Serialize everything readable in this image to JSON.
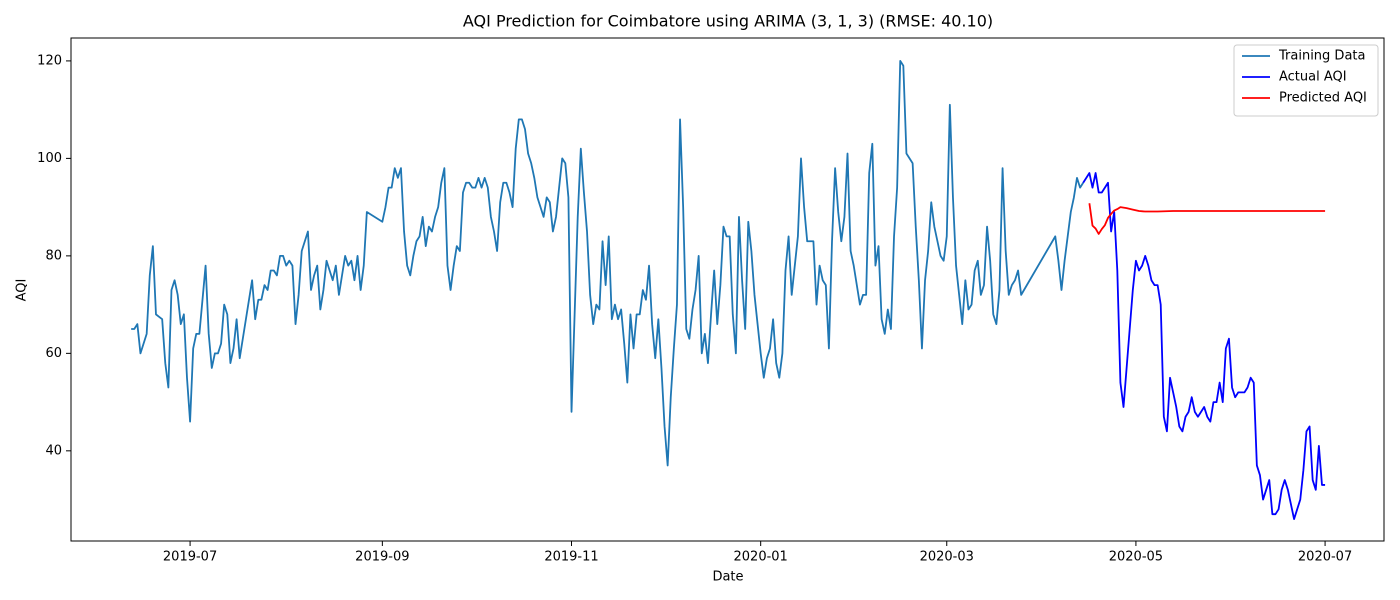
{
  "chart_data": {
    "type": "line",
    "title": "AQI Prediction for Coimbatore using ARIMA (3, 1, 3) (RMSE: 40.10)",
    "x_label": "Date",
    "y_label": "AQI",
    "xlim": [
      18039.6,
      18463
    ],
    "ylim": [
      21.5,
      124.7
    ],
    "xticks": [
      {
        "value": 18078,
        "label": "2019-07"
      },
      {
        "value": 18140,
        "label": "2019-09"
      },
      {
        "value": 18201,
        "label": "2019-11"
      },
      {
        "value": 18262,
        "label": "2020-01"
      },
      {
        "value": 18322,
        "label": "2020-03"
      },
      {
        "value": 18383,
        "label": "2020-05"
      },
      {
        "value": 18444,
        "label": "2020-07"
      }
    ],
    "yticks": [
      40,
      60,
      80,
      100,
      120
    ],
    "grid": false,
    "legend": "upper right",
    "series": [
      {
        "name": "Training Data",
        "color": "#1f77b4",
        "x": [
          18059,
          18060,
          18061,
          18062,
          18063,
          18064,
          18065,
          18066,
          18067,
          18068,
          18069,
          18070,
          18071,
          18072,
          18073,
          18074,
          18075,
          18076,
          18077,
          18078,
          18079,
          18080,
          18081,
          18082,
          18083,
          18084,
          18085,
          18086,
          18087,
          18088,
          18089,
          18090,
          18091,
          18092,
          18093,
          18094,
          18095,
          18096,
          18097,
          18098,
          18099,
          18100,
          18101,
          18102,
          18103,
          18104,
          18105,
          18106,
          18107,
          18108,
          18109,
          18110,
          18111,
          18112,
          18113,
          18114,
          18115,
          18116,
          18117,
          18118,
          18119,
          18120,
          18121,
          18122,
          18123,
          18124,
          18125,
          18126,
          18127,
          18128,
          18129,
          18130,
          18131,
          18132,
          18133,
          18134,
          18135,
          18140,
          18141,
          18142,
          18143,
          18144,
          18145,
          18146,
          18147,
          18148,
          18149,
          18150,
          18151,
          18152,
          18153,
          18154,
          18155,
          18156,
          18157,
          18158,
          18159,
          18160,
          18161,
          18162,
          18163,
          18164,
          18165,
          18166,
          18167,
          18168,
          18169,
          18170,
          18171,
          18172,
          18173,
          18174,
          18175,
          18176,
          18177,
          18178,
          18179,
          18180,
          18181,
          18182,
          18183,
          18184,
          18185,
          18186,
          18187,
          18188,
          18189,
          18190,
          18191,
          18192,
          18193,
          18194,
          18195,
          18196,
          18197,
          18198,
          18199,
          18200,
          18201,
          18202,
          18203,
          18204,
          18205,
          18206,
          18207,
          18208,
          18209,
          18210,
          18211,
          18212,
          18213,
          18214,
          18215,
          18216,
          18217,
          18218,
          18219,
          18220,
          18221,
          18222,
          18223,
          18224,
          18225,
          18226,
          18227,
          18228,
          18229,
          18230,
          18231,
          18232,
          18233,
          18234,
          18235,
          18236,
          18237,
          18238,
          18239,
          18240,
          18241,
          18242,
          18243,
          18244,
          18245,
          18246,
          18247,
          18248,
          18249,
          18250,
          18251,
          18252,
          18253,
          18254,
          18255,
          18256,
          18257,
          18258,
          18259,
          18260,
          18261,
          18262,
          18263,
          18264,
          18265,
          18266,
          18267,
          18268,
          18269,
          18270,
          18271,
          18272,
          18273,
          18274,
          18275,
          18276,
          18277,
          18278,
          18279,
          18280,
          18281,
          18282,
          18283,
          18284,
          18285,
          18286,
          18287,
          18288,
          18289,
          18290,
          18291,
          18292,
          18293,
          18294,
          18295,
          18296,
          18297,
          18298,
          18299,
          18300,
          18301,
          18302,
          18303,
          18304,
          18305,
          18306,
          18307,
          18308,
          18309,
          18310,
          18311,
          18312,
          18313,
          18314,
          18315,
          18316,
          18317,
          18318,
          18319,
          18320,
          18321,
          18322,
          18323,
          18324,
          18325,
          18326,
          18327,
          18328,
          18329,
          18330,
          18331,
          18332,
          18333,
          18334,
          18335,
          18336,
          18337,
          18338,
          18339,
          18340,
          18341,
          18342,
          18343,
          18344,
          18345,
          18346,
          18357,
          18358,
          18359,
          18360,
          18361,
          18362,
          18363,
          18364,
          18365,
          18366
        ],
        "values": [
          65,
          65,
          66,
          60,
          62,
          64,
          76,
          82,
          68,
          67.5,
          67,
          58,
          53,
          73,
          75,
          72,
          66,
          68,
          55,
          46,
          61,
          64,
          64,
          71,
          78,
          64,
          57,
          60,
          60,
          62,
          70,
          68,
          58,
          61,
          67,
          59,
          63,
          67,
          71,
          75,
          67,
          71,
          71,
          74,
          73,
          77,
          77,
          76,
          80,
          80,
          78,
          79,
          78,
          66,
          72,
          81,
          83,
          85,
          73,
          76,
          78,
          69,
          73,
          79,
          77,
          75,
          78,
          72,
          76,
          80,
          78,
          79,
          75,
          80,
          73,
          78,
          89,
          87,
          90,
          94,
          94,
          98,
          96,
          98,
          85,
          78,
          76,
          80,
          83,
          84,
          88,
          82,
          86,
          85,
          88,
          90,
          95,
          98,
          78,
          73,
          78,
          82,
          81,
          93,
          95,
          95,
          94,
          94,
          96,
          94,
          96,
          94,
          88,
          85,
          81,
          91,
          95,
          95,
          93,
          90,
          102,
          108,
          108,
          106,
          101,
          99,
          96,
          92,
          90,
          88,
          92,
          91,
          85,
          88,
          94,
          100,
          99,
          92,
          48,
          68,
          88,
          102,
          93,
          85,
          72,
          66,
          70,
          69,
          83,
          74,
          84,
          67,
          70,
          67,
          69,
          62,
          54,
          68,
          61,
          68,
          68,
          73,
          71,
          78,
          66,
          59,
          67,
          57,
          45,
          37,
          51,
          61,
          70,
          108,
          90,
          65,
          63,
          69,
          73,
          80,
          60,
          64,
          58,
          68,
          77,
          66,
          74,
          86,
          84,
          84,
          68,
          60,
          88,
          75,
          65,
          87,
          81,
          72,
          66,
          60,
          55,
          59,
          61,
          67,
          58,
          55,
          60,
          77,
          84,
          72,
          78,
          84,
          100,
          90,
          83,
          83,
          83,
          70,
          78,
          75,
          74,
          61,
          83,
          98,
          89,
          83,
          88,
          101,
          81,
          78,
          74,
          70,
          72,
          72,
          97,
          103,
          78,
          82,
          67,
          64,
          69,
          65,
          84,
          94,
          120,
          119,
          101,
          100,
          99,
          86,
          75,
          61,
          75,
          81,
          91,
          86,
          83,
          80,
          79,
          84,
          111,
          92,
          78,
          72,
          66,
          75,
          69,
          70,
          77,
          79,
          72,
          74,
          86,
          79,
          68,
          66,
          73,
          98,
          81,
          72,
          74,
          75,
          77,
          72,
          84,
          79,
          73,
          79,
          84,
          89,
          92,
          96,
          94,
          95
        ]
      },
      {
        "name": "Actual AQI",
        "color": "#0000ff",
        "x": [
          18366,
          18367,
          18368,
          18369,
          18370,
          18371,
          18372,
          18373,
          18374,
          18375,
          18376,
          18377,
          18378,
          18379,
          18380,
          18381,
          18382,
          18383,
          18384,
          18385,
          18386,
          18387,
          18388,
          18389,
          18390,
          18391,
          18392,
          18393,
          18394,
          18395,
          18396,
          18397,
          18398,
          18399,
          18400,
          18401,
          18402,
          18403,
          18404,
          18405,
          18406,
          18407,
          18408,
          18409,
          18410,
          18411,
          18412,
          18413,
          18414,
          18415,
          18416,
          18417,
          18418,
          18419,
          18420,
          18421,
          18422,
          18423,
          18424,
          18425,
          18426,
          18427,
          18428,
          18429,
          18430,
          18431,
          18432,
          18433,
          18434,
          18435,
          18436,
          18437,
          18438,
          18439,
          18440,
          18441,
          18442,
          18443,
          18444
        ],
        "values": [
          95,
          96,
          97,
          94,
          97,
          93,
          93,
          94,
          95,
          85,
          89,
          77,
          54,
          49,
          57,
          65,
          73,
          79,
          77,
          78,
          80,
          78,
          75,
          74,
          74,
          70,
          47,
          44,
          55,
          52,
          49,
          45,
          44,
          47,
          48,
          51,
          48,
          47,
          48,
          49,
          47,
          46,
          50,
          50,
          54,
          50,
          61,
          63,
          53,
          51,
          52,
          52,
          52,
          53,
          55,
          54,
          37,
          35,
          30,
          32,
          34,
          27,
          27,
          28,
          32,
          34,
          32,
          29,
          26,
          28,
          30,
          36,
          44,
          45,
          34,
          32,
          41,
          33,
          33
        ]
      },
      {
        "name": "Predicted AQI",
        "color": "#ff0000",
        "x": [
          18368,
          18369,
          18370,
          18371,
          18372,
          18373,
          18374,
          18375,
          18376,
          18377,
          18378,
          18380,
          18382,
          18384,
          18386,
          18390,
          18395,
          18444
        ],
        "values": [
          90.8,
          86.2,
          85.6,
          84.5,
          85.5,
          86.3,
          87.8,
          88.6,
          89.3,
          89.6,
          90,
          89.8,
          89.5,
          89.2,
          89.1,
          89.1,
          89.2,
          89.2
        ]
      }
    ]
  }
}
